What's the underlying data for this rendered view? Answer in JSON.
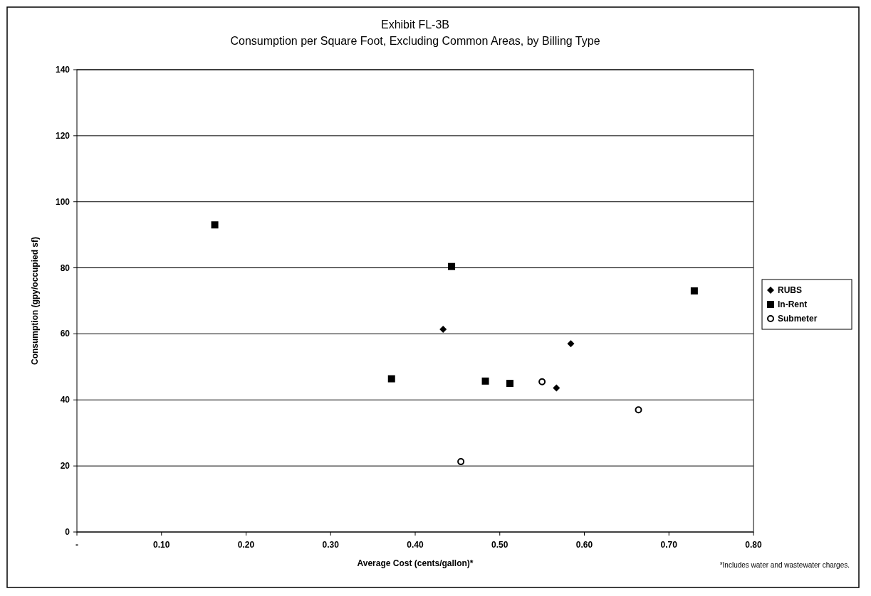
{
  "chart_data": {
    "type": "scatter",
    "title": "Exhibit FL-3B",
    "subtitle": "Consumption per Square Foot, Excluding Common Areas, by Billing Type",
    "xlabel": "Average Cost (cents/gallon)*",
    "ylabel": "Consumption (gpy/occupied sf)",
    "xlim": [
      0,
      0.8
    ],
    "xticks": [
      {
        "value": 0,
        "label": "-"
      },
      {
        "value": 0.1,
        "label": "0.10"
      },
      {
        "value": 0.2,
        "label": "0.20"
      },
      {
        "value": 0.3,
        "label": "0.30"
      },
      {
        "value": 0.4,
        "label": "0.40"
      },
      {
        "value": 0.5,
        "label": "0.50"
      },
      {
        "value": 0.6,
        "label": "0.60"
      },
      {
        "value": 0.7,
        "label": "0.70"
      },
      {
        "value": 0.8,
        "label": "0.80"
      }
    ],
    "ylim": [
      0,
      140
    ],
    "yticks": [
      0,
      20,
      40,
      60,
      80,
      100,
      120,
      140
    ],
    "grid": "y",
    "legend": "right",
    "series": [
      {
        "name": "RUBS",
        "color": "#000000",
        "marker": "diamond",
        "x": [
          0.433,
          0.584,
          0.567
        ],
        "values": [
          61.4,
          57,
          43.6
        ]
      },
      {
        "name": "In-Rent",
        "color": "#000000",
        "marker": "square",
        "x": [
          0.163,
          0.443,
          0.372,
          0.483,
          0.512,
          0.73
        ],
        "values": [
          93,
          80.4,
          46.4,
          45.7,
          45,
          73
        ]
      },
      {
        "name": "Submeter",
        "color": "#000000",
        "marker": "circle",
        "x": [
          0.55,
          0.454,
          0.664
        ],
        "values": [
          45.5,
          21.3,
          37
        ]
      }
    ],
    "annotations": [
      "*Includes water and wastewater charges."
    ]
  }
}
